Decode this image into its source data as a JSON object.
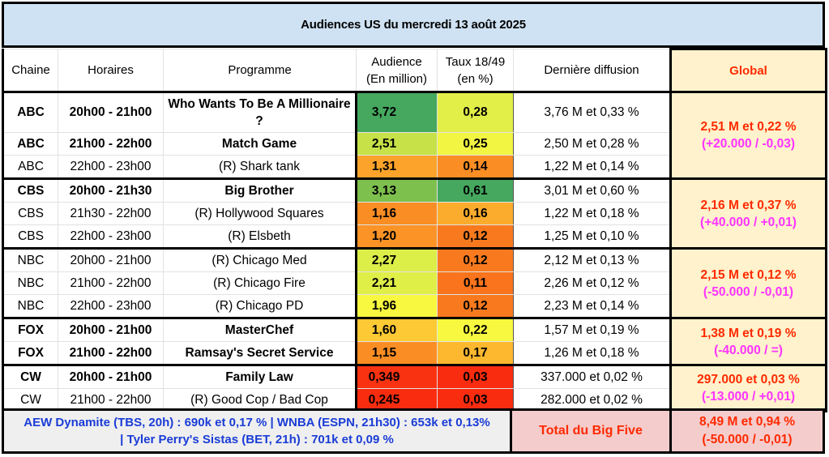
{
  "title": "Audiences US du mercredi 13 août 2025",
  "headers": {
    "chaine": "Chaine",
    "horaires": "Horaires",
    "programme": "Programme",
    "audience_l1": "Audience",
    "audience_l2": "(En million)",
    "taux_l1": "Taux 18/49",
    "taux_l2": "(en %)",
    "derniere": "Dernière diffusion",
    "global": "Global"
  },
  "colors": {
    "title_bg": "#cfe2f3",
    "global_bg": "#fff2cc",
    "global_main_text": "#ff2a00",
    "global_diff_text": "#ff33ff",
    "footer_left_bg": "#efefef",
    "footer_left_text": "#1a3cd6",
    "footer_total_bg": "#f4cccc"
  },
  "rows": [
    {
      "chaine": "ABC",
      "horaires": "20h00 - 21h00",
      "programme": "Who Wants To Be A Millionaire ?",
      "audience": "3,72",
      "taux": "0,28",
      "derniere": "3,76 M et 0,33 %",
      "bold": true,
      "aud_color": "#45a85e",
      "taux_color": "#e2ef48"
    },
    {
      "chaine": "ABC",
      "horaires": "21h00 - 22h00",
      "programme": "Match Game",
      "audience": "2,51",
      "taux": "0,25",
      "derniere": "2,50 M et 0,28 %",
      "bold": true,
      "aud_color": "#c6e248",
      "taux_color": "#f2f542"
    },
    {
      "chaine": "ABC",
      "horaires": "22h00 - 23h00",
      "programme": "(R) Shark tank",
      "audience": "1,31",
      "taux": "0,14",
      "derniere": "1,22 M et 0,14 %",
      "bold": false,
      "aud_color": "#fba32a",
      "taux_color": "#fa8e24"
    },
    {
      "chaine": "CBS",
      "horaires": "20h00 - 21h30",
      "programme": "Big Brother",
      "audience": "3,13",
      "taux": "0,61",
      "derniere": "3,01 M et 0,60 %",
      "bold": true,
      "aud_color": "#7ec04e",
      "taux_color": "#45a85e"
    },
    {
      "chaine": "CBS",
      "horaires": "21h30 - 22h00",
      "programme": "(R) Hollywood Squares",
      "audience": "1,16",
      "taux": "0,16",
      "derniere": "1,22 M et 0,18 %",
      "bold": false,
      "aud_color": "#fa8e24",
      "taux_color": "#fcac2c"
    },
    {
      "chaine": "CBS",
      "horaires": "22h00 - 23h00",
      "programme": "(R) Elsbeth",
      "audience": "1,20",
      "taux": "0,12",
      "derniere": "1,25 M et 0,10 %",
      "bold": false,
      "aud_color": "#fb9326",
      "taux_color": "#f97a1e"
    },
    {
      "chaine": "NBC",
      "horaires": "20h00 - 21h00",
      "programme": "(R) Chicago Med",
      "audience": "2,27",
      "taux": "0,12",
      "derniere": "2,12 M et 0,13 %",
      "bold": false,
      "aud_color": "#dcee48",
      "taux_color": "#f97a1e"
    },
    {
      "chaine": "NBC",
      "horaires": "21h00 - 22h00",
      "programme": "(R) Chicago Fire",
      "audience": "2,21",
      "taux": "0,11",
      "derniere": "2,26 M et 0,12 %",
      "bold": false,
      "aud_color": "#e0ef48",
      "taux_color": "#f9741c"
    },
    {
      "chaine": "NBC",
      "horaires": "22h00 - 23h00",
      "programme": "(R) Chicago PD",
      "audience": "1,96",
      "taux": "0,12",
      "derniere": "2,23 M et 0,14 %",
      "bold": false,
      "aud_color": "#f8f840",
      "taux_color": "#f97a1e"
    },
    {
      "chaine": "FOX",
      "horaires": "20h00 - 21h00",
      "programme": "MasterChef",
      "audience": "1,60",
      "taux": "0,22",
      "derniere": "1,57 M et 0,19 %",
      "bold": true,
      "aud_color": "#fdc934",
      "taux_color": "#f8f840"
    },
    {
      "chaine": "FOX",
      "horaires": "21h00 - 22h00",
      "programme": "Ramsay's Secret Service",
      "audience": "1,15",
      "taux": "0,17",
      "derniere": "1,26 M et 0,18 %",
      "bold": true,
      "aud_color": "#fa8e24",
      "taux_color": "#fdb82f"
    },
    {
      "chaine": "CW",
      "horaires": "20h00 - 21h00",
      "programme": "Family Law",
      "audience": "0,349",
      "taux": "0,03",
      "derniere": "337.000 et 0,02 %",
      "bold": true,
      "aud_color": "#f93212",
      "taux_color": "#f92c10"
    },
    {
      "chaine": "CW",
      "horaires": "21h00 - 22h00",
      "programme": "(R) Good Cop / Bad Cop",
      "audience": "0,245",
      "taux": "0,03",
      "derniere": "282.000 et 0,02 %",
      "bold": false,
      "aud_color": "#f92c10",
      "taux_color": "#f92c10"
    }
  ],
  "globals": {
    "abc": {
      "main": "2,51 M et 0,22 %",
      "diff": "(+20.000 / -0,03)"
    },
    "cbs": {
      "main": "2,16 M et 0,37 %",
      "diff": "(+40.000 / +0,01)"
    },
    "nbc": {
      "main": "2,15 M et 0,12 %",
      "diff": "(-50.000 / -0,01)"
    },
    "fox": {
      "main": "1,38 M et 0,19 %",
      "diff": "(-40.000 / =)"
    },
    "cw": {
      "main": "297.000 et 0,03 %",
      "diff": "(-13.000 / +0,01)"
    }
  },
  "footer": {
    "cable_line1": "AEW Dynamite (TBS, 20h) : 690k et 0,17 % | WNBA (ESPN, 21h30) : 653k et 0,13%",
    "cable_line2": "| Tyler Perry's Sistas (BET, 21h) : 701k et 0,09 %",
    "total_label": "Total du Big Five",
    "total_main": "8,49 M et 0,94 %",
    "total_diff": "(-50.000 / -0,01)"
  }
}
